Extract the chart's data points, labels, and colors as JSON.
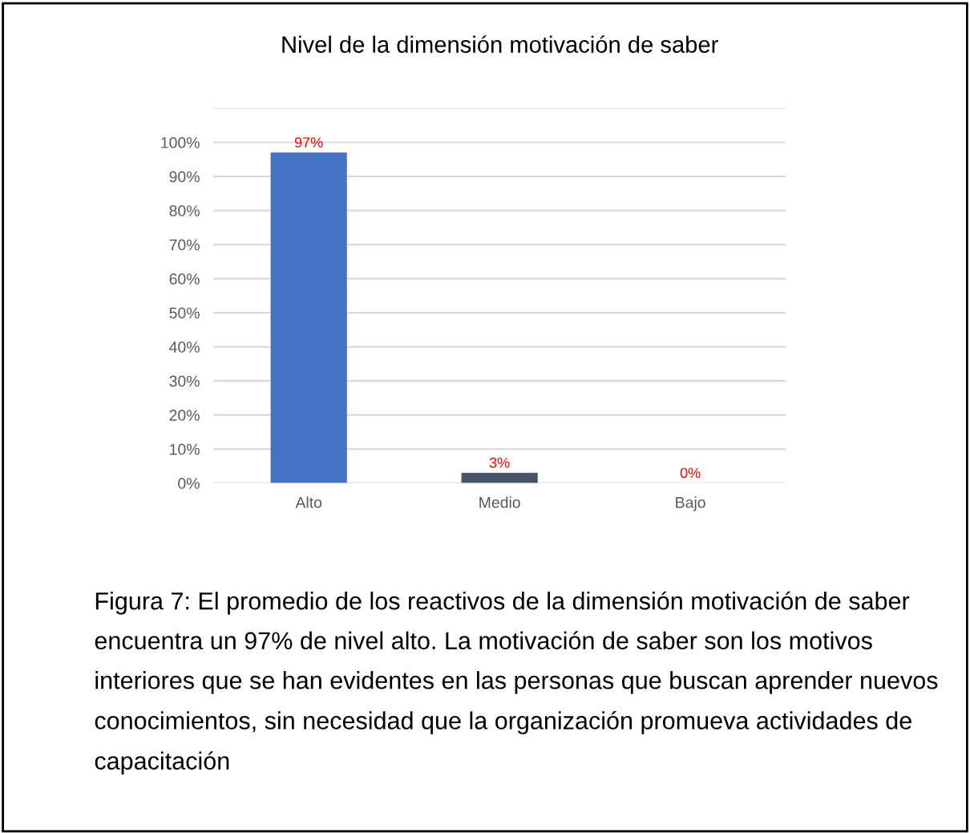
{
  "chart_data": {
    "type": "bar",
    "title": "Nivel de la dimensión motivación de saber",
    "categories": [
      "Alto",
      "Medio",
      "Bajo"
    ],
    "values": [
      97,
      3,
      0
    ],
    "colors": [
      "#4472c4",
      "#44546a",
      "#c09000"
    ],
    "value_labels": [
      "97%",
      "3%",
      "0%"
    ],
    "ylim": [
      0,
      110
    ],
    "yticks": [
      {
        "value": 0,
        "label": "0%"
      },
      {
        "value": 10,
        "label": "10%"
      },
      {
        "value": 20,
        "label": "20%"
      },
      {
        "value": 30,
        "label": "30%"
      },
      {
        "value": 40,
        "label": "40%"
      },
      {
        "value": 50,
        "label": "50%"
      },
      {
        "value": 60,
        "label": "60%"
      },
      {
        "value": 70,
        "label": "70%"
      },
      {
        "value": 80,
        "label": "80%"
      },
      {
        "value": 90,
        "label": "90%"
      },
      {
        "value": 100,
        "label": "100%"
      },
      {
        "value": 110,
        "label": null
      }
    ],
    "grid": "y",
    "annotations": [
      "Figura 7: El promedio de los reactivos de la dimensión motivación de saber encuentra un 97% de nivel alto. La motivación de saber son los motivos interiores que se han evidentes en las personas que buscan aprender nuevos conocimientos, sin necesidad que la organización promueva actividades de capacitación"
    ]
  }
}
